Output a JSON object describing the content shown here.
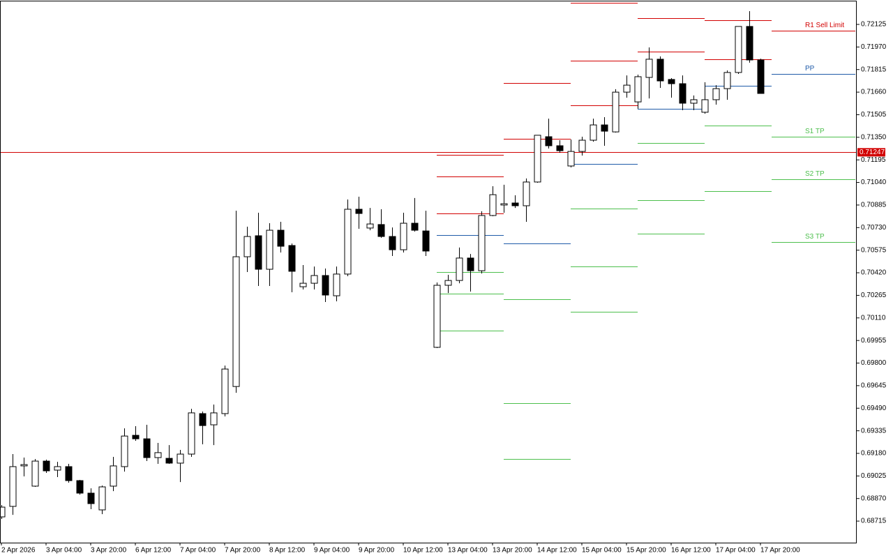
{
  "chart_data": {
    "type": "candlestick",
    "categories": [
      "2 Apr 2026",
      null,
      null,
      null,
      "3 Apr 04:00",
      null,
      null,
      null,
      "3 Apr 20:00",
      null,
      null,
      null,
      "6 Apr 12:00",
      null,
      null,
      null,
      "7 Apr 04:00",
      null,
      null,
      null,
      "7 Apr 20:00",
      null,
      null,
      null,
      "8 Apr 12:00",
      null,
      null,
      null,
      "9 Apr 04:00",
      null,
      null,
      null,
      "9 Apr 20:00",
      null,
      null,
      null,
      "10 Apr 12:00",
      null,
      null,
      null,
      "13 Apr 04:00",
      null,
      null,
      null,
      "13 Apr 20:00",
      null,
      null,
      null,
      "14 Apr 12:00",
      null,
      null,
      null,
      "15 Apr 04:00",
      null,
      null,
      null,
      "15 Apr 20:00",
      null,
      null,
      null,
      "16 Apr 12:00",
      null,
      null,
      null,
      "17 Apr 04:00",
      null,
      null,
      null,
      "17 Apr 20:00"
    ],
    "open": [
      0.68744,
      0.68816,
      0.69094,
      0.68955,
      0.69127,
      0.69065,
      0.69089,
      0.68993,
      0.68907,
      0.68792,
      0.68955,
      0.69089,
      0.69304,
      0.6928,
      0.69151,
      0.69146,
      0.69113,
      0.69175,
      0.69453,
      0.69376,
      0.69453,
      0.69639,
      0.7053,
      0.70674,
      0.70444,
      0.70712,
      0.70607,
      0.70324,
      0.70348,
      0.70401,
      0.70262,
      0.70411,
      0.70856,
      0.70727,
      0.70751,
      0.70669,
      0.70578,
      0.7076,
      0.70707,
      0.69908,
      0.70334,
      0.70367,
      0.70521,
      0.70434,
      0.70813,
      0.70885,
      0.70899,
      0.7088,
      0.71043,
      0.71354,
      0.71292,
      0.71153,
      0.71253,
      0.7133,
      0.71435,
      0.71387,
      0.7166,
      0.71593,
      0.71761,
      0.71886,
      0.71747,
      0.71718,
      0.71584,
      0.71522,
      0.71608,
      0.71684,
      0.71795,
      0.72111,
      0.71881
    ],
    "high": [
      0.68825,
      0.69175,
      0.69151,
      0.69141,
      0.69137,
      0.69122,
      0.69108,
      0.68998,
      0.6894,
      0.68959,
      0.69156,
      0.69352,
      0.69367,
      0.69376,
      0.69252,
      0.69237,
      0.69204,
      0.69486,
      0.69467,
      0.69515,
      0.69783,
      0.70846,
      0.70736,
      0.70832,
      0.7076,
      0.7077,
      0.70621,
      0.70473,
      0.70463,
      0.70449,
      0.70463,
      0.70923,
      0.70942,
      0.70865,
      0.70856,
      0.70731,
      0.70832,
      0.70933,
      0.70846,
      0.70353,
      0.70406,
      0.70593,
      0.70549,
      0.70842,
      0.71014,
      0.71024,
      0.70952,
      0.71067,
      0.71364,
      0.71478,
      0.7133,
      0.71335,
      0.71354,
      0.71478,
      0.71488,
      0.7168,
      0.71775,
      0.7178,
      0.71967,
      0.71905,
      0.71756,
      0.71775,
      0.71637,
      0.71728,
      0.71708,
      0.71809,
      0.72111,
      0.72216,
      0.7189
    ],
    "low": [
      0.6873,
      0.68758,
      0.69022,
      0.6895,
      0.69046,
      0.69017,
      0.68979,
      0.68897,
      0.68797,
      0.68763,
      0.68921,
      0.69055,
      0.69266,
      0.69127,
      0.69108,
      0.69108,
      0.68983,
      0.69156,
      0.69242,
      0.69237,
      0.69434,
      0.69596,
      0.70425,
      0.70329,
      0.70329,
      0.70559,
      0.70286,
      0.70305,
      0.70305,
      0.70219,
      0.70224,
      0.70396,
      0.70722,
      0.70712,
      0.7066,
      0.70535,
      0.70559,
      0.70703,
      0.70535,
      0.69903,
      0.70281,
      0.70348,
      0.70291,
      0.70415,
      0.70808,
      0.70832,
      0.70865,
      0.7077,
      0.71038,
      0.71273,
      0.71244,
      0.71143,
      0.71225,
      0.7132,
      0.71292,
      0.71383,
      0.71622,
      0.71546,
      0.71617,
      0.71689,
      0.71622,
      0.71536,
      0.71536,
      0.71512,
      0.71574,
      0.71608,
      0.71785,
      0.71862,
      0.71651
    ],
    "close": [
      0.68811,
      0.69089,
      0.69103,
      0.69127,
      0.6906,
      0.69089,
      0.68993,
      0.68907,
      0.68835,
      0.6895,
      0.69094,
      0.69299,
      0.6928,
      0.69151,
      0.69185,
      0.69113,
      0.69175,
      0.69458,
      0.69371,
      0.69458,
      0.69759,
      0.7053,
      0.70669,
      0.70444,
      0.70712,
      0.70602,
      0.7043,
      0.70348,
      0.70401,
      0.70267,
      0.70411,
      0.70856,
      0.70827,
      0.70755,
      0.70669,
      0.70578,
      0.7076,
      0.70712,
      0.70569,
      0.70334,
      0.70367,
      0.70521,
      0.70434,
      0.70813,
      0.70956,
      0.70894,
      0.7088,
      0.71043,
      0.71364,
      0.71292,
      0.71258,
      0.71253,
      0.7133,
      0.71435,
      0.71392,
      0.7166,
      0.71708,
      0.71766,
      0.71886,
      0.71737,
      0.71718,
      0.71584,
      0.71608,
      0.71608,
      0.71684,
      0.71795,
      0.72111,
      0.71881,
      0.71651
    ],
    "up_color": "#ffffff",
    "down_color": "#000000",
    "ylim": [
      0.68567,
      0.72283
    ],
    "yticks": [
      0.72125,
      {
        "value": 0.7197,
        "label": "0.71970"
      },
      0.71815,
      {
        "value": 0.7166,
        "label": "0.71660"
      },
      0.71505,
      {
        "value": 0.7135,
        "label": "0.71350"
      },
      0.71195,
      {
        "value": 0.7104,
        "label": "0.71040"
      },
      0.70885,
      {
        "value": 0.7073,
        "label": "0.70730"
      },
      0.70575,
      {
        "value": 0.7042,
        "label": "0.70420"
      },
      0.70265,
      {
        "value": 0.7011,
        "label": "0.70110"
      },
      0.69955,
      {
        "value": 0.698,
        "label": "0.69800"
      },
      0.69645,
      {
        "value": 0.6949,
        "label": "0.69490"
      },
      0.69335,
      {
        "value": 0.6918,
        "label": "0.69180"
      },
      0.69025,
      {
        "value": 0.6887,
        "label": "0.68870"
      },
      0.68715
    ],
    "current_price": 0.71247,
    "current_price_color": "#d20000",
    "pivot_levels": [
      {
        "from": 39,
        "to": 45,
        "lines": [
          {
            "value": 0.71229,
            "color": "#d20000"
          },
          {
            "value": 0.71081,
            "color": "#d20000"
          },
          {
            "value": 0.70827,
            "color": "#d20000"
          },
          {
            "value": 0.70679,
            "color": "#1e5aa8"
          },
          {
            "value": 0.70425,
            "color": "#4cbf4c"
          },
          {
            "value": 0.70276,
            "color": "#4cbf4c"
          },
          {
            "value": 0.70023,
            "color": "#4cbf4c"
          }
        ]
      },
      {
        "from": 45,
        "to": 51,
        "lines": [
          {
            "value": 0.71723,
            "color": "#d20000"
          },
          {
            "value": 0.7134,
            "color": "#d20000"
          },
          {
            "value": 0.70621,
            "color": "#1e5aa8"
          },
          {
            "value": 0.70238,
            "color": "#4cbf4c"
          },
          {
            "value": 0.69525,
            "color": "#4cbf4c"
          },
          {
            "value": 0.69141,
            "color": "#4cbf4c"
          }
        ]
      },
      {
        "from": 51,
        "to": 57,
        "lines": [
          {
            "value": 0.72273,
            "color": "#d20000"
          },
          {
            "value": 0.71876,
            "color": "#d20000"
          },
          {
            "value": 0.71569,
            "color": "#d20000"
          },
          {
            "value": 0.71167,
            "color": "#1e5aa8"
          },
          {
            "value": 0.70861,
            "color": "#4cbf4c"
          },
          {
            "value": 0.70463,
            "color": "#4cbf4c"
          },
          {
            "value": 0.70152,
            "color": "#4cbf4c"
          }
        ]
      },
      {
        "from": 57,
        "to": 63,
        "lines": [
          {
            "value": 0.72168,
            "color": "#d20000"
          },
          {
            "value": 0.71938,
            "color": "#d20000"
          },
          {
            "value": 0.71546,
            "color": "#1e5aa8"
          },
          {
            "value": 0.71311,
            "color": "#4cbf4c"
          },
          {
            "value": 0.70918,
            "color": "#4cbf4c"
          },
          {
            "value": 0.70688,
            "color": "#4cbf4c"
          }
        ]
      },
      {
        "from": 63,
        "to": 69,
        "lines": [
          {
            "value": 0.72154,
            "color": "#d20000"
          },
          {
            "value": 0.71886,
            "color": "#d20000"
          },
          {
            "value": 0.71704,
            "color": "#1e5aa8"
          },
          {
            "value": 0.71431,
            "color": "#4cbf4c"
          },
          {
            "value": 0.71249,
            "color": "#4cbf4c"
          },
          {
            "value": 0.7098,
            "color": "#4cbf4c"
          }
        ]
      },
      {
        "from": 69,
        "to": 76.5,
        "lines": [
          {
            "value": 0.72082,
            "color": "#d20000",
            "label": "R1 Sell Limit"
          },
          {
            "value": 0.71785,
            "color": "#1e5aa8",
            "label": "PP"
          },
          {
            "value": 0.71354,
            "color": "#4cbf4c",
            "label": "S1 TP"
          },
          {
            "value": 0.71062,
            "color": "#4cbf4c",
            "label": "S2 TP"
          },
          {
            "value": 0.70631,
            "color": "#4cbf4c",
            "label": "S3 TP"
          }
        ]
      }
    ]
  }
}
